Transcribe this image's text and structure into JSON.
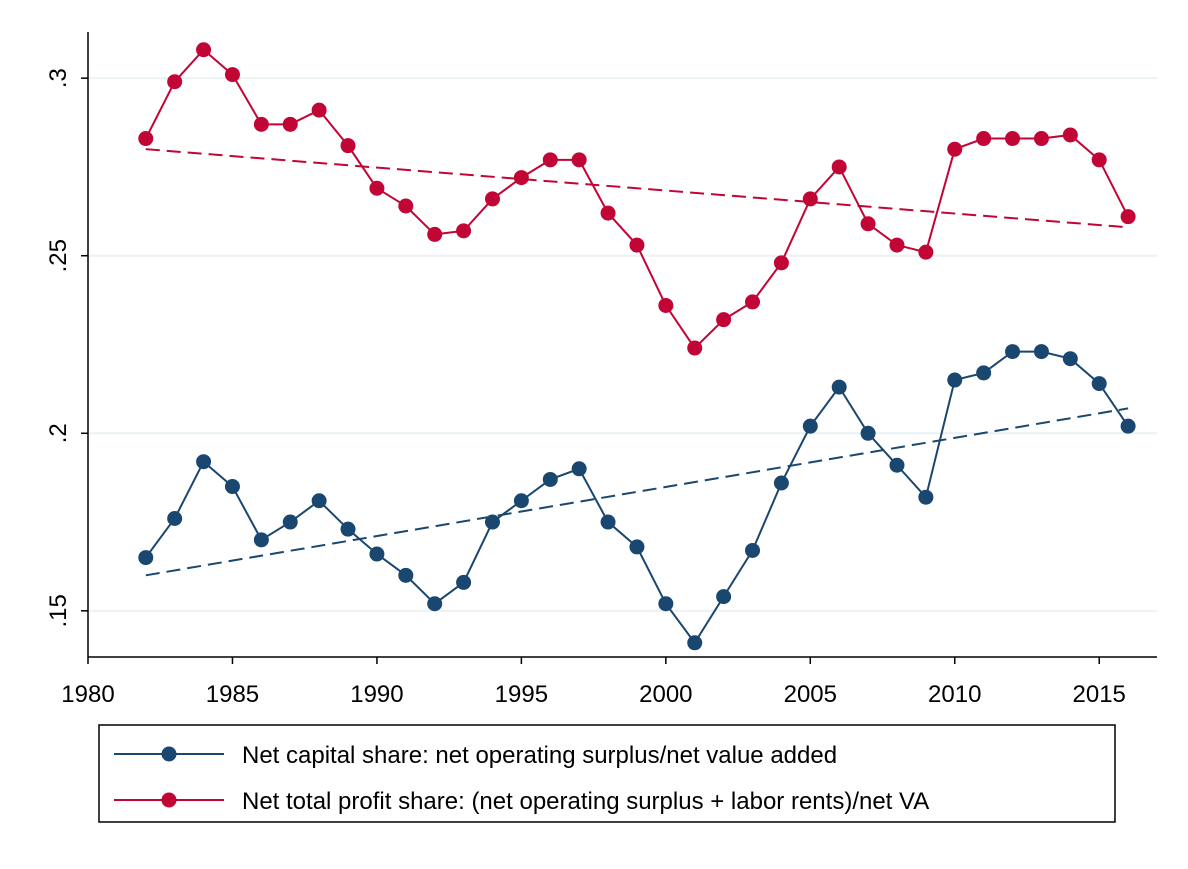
{
  "chart_data": {
    "type": "line",
    "title": "",
    "xlabel": "",
    "ylabel": "",
    "xlim": [
      1980,
      2017
    ],
    "ylim": [
      0.137,
      0.313
    ],
    "x_ticks": [
      1980,
      1985,
      1990,
      1995,
      2000,
      2005,
      2010,
      2015
    ],
    "x_tick_labels": [
      "1980",
      "1985",
      "1990",
      "1995",
      "2000",
      "2005",
      "2010",
      "2015"
    ],
    "y_ticks": [
      0.15,
      0.2,
      0.25,
      0.3
    ],
    "y_tick_labels": [
      ".15",
      ".2",
      ".25",
      ".3"
    ],
    "grid": "horizontal",
    "legend_position": "bottom",
    "colors": {
      "capital": "#1a476f",
      "profit": "#c10534"
    },
    "x": [
      1982,
      1983,
      1984,
      1985,
      1986,
      1987,
      1988,
      1989,
      1990,
      1991,
      1992,
      1993,
      1994,
      1995,
      1996,
      1997,
      1998,
      1999,
      2000,
      2001,
      2002,
      2003,
      2004,
      2005,
      2006,
      2007,
      2008,
      2009,
      2010,
      2011,
      2012,
      2013,
      2014,
      2015,
      2016
    ],
    "series": [
      {
        "key": "capital",
        "name": "Net capital share: net operating surplus/net value added",
        "values": [
          0.165,
          0.176,
          0.192,
          0.185,
          0.17,
          0.175,
          0.181,
          0.173,
          0.166,
          0.16,
          0.152,
          0.158,
          0.175,
          0.181,
          0.187,
          0.19,
          0.175,
          0.168,
          0.152,
          0.141,
          0.154,
          0.167,
          0.186,
          0.202,
          0.213,
          0.2,
          0.191,
          0.182,
          0.215,
          0.217,
          0.223,
          0.223,
          0.221,
          0.214,
          0.202
        ],
        "trend": [
          0.16,
          0.207
        ]
      },
      {
        "key": "profit",
        "name": "Net total profit share: (net operating surplus + labor rents)/net VA",
        "values": [
          0.283,
          0.299,
          0.308,
          0.301,
          0.287,
          0.287,
          0.291,
          0.281,
          0.269,
          0.264,
          0.256,
          0.257,
          0.266,
          0.272,
          0.277,
          0.277,
          0.262,
          0.253,
          0.236,
          0.224,
          0.232,
          0.237,
          0.248,
          0.266,
          0.275,
          0.259,
          0.253,
          0.251,
          0.28,
          0.283,
          0.283,
          0.283,
          0.284,
          0.277,
          0.261
        ],
        "trend": [
          0.28,
          0.258
        ]
      }
    ]
  }
}
